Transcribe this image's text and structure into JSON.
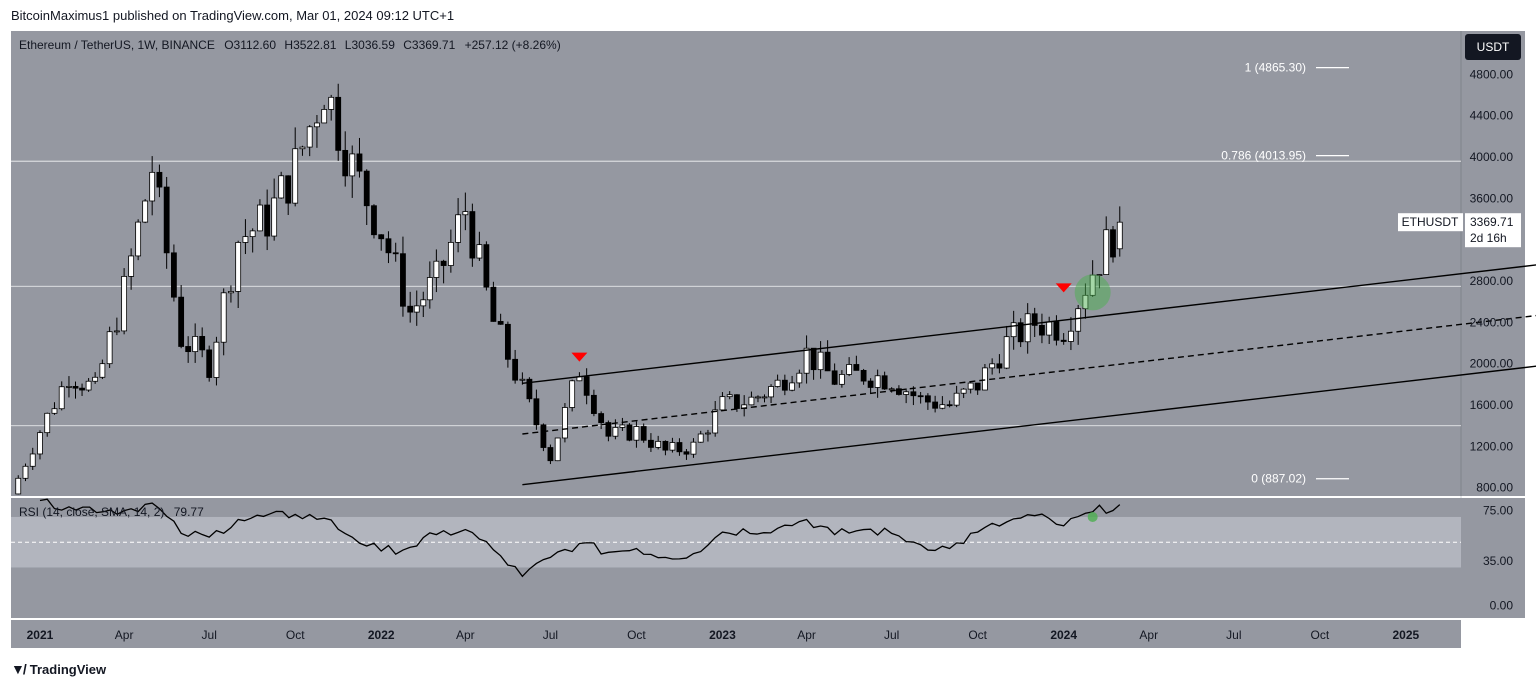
{
  "publisher_line": "BitcoinMaximus1 published on TradingView.com, Mar 01, 2024 09:12 UTC+1",
  "footer_brand": "TradingView",
  "legend": {
    "symbol": "Ethereum / TetherUS, 1W, BINANCE",
    "o_label": "O",
    "o_value": "3112.60",
    "h_label": "H",
    "h_value": "3522.81",
    "l_label": "L",
    "l_value": "3036.59",
    "c_label": "C",
    "c_value": "3369.71",
    "change": "+257.12 (+8.26%)"
  },
  "currency_badge": "USDT",
  "price_tag": {
    "symbol": "ETHUSDT",
    "price": "3369.71",
    "countdown": "2d 16h"
  },
  "fib_levels": [
    {
      "label": "1 (4865.30)",
      "value": 4865.3
    },
    {
      "label": "0.786 (4013.95)",
      "value": 4013.95
    },
    {
      "label": "0 (887.02)",
      "value": 887.02
    }
  ],
  "rsi_legend": {
    "label": "RSI (14, close, SMA, 14, 2)",
    "value": "79.77"
  },
  "colors": {
    "pane_bg": "#9598a1",
    "rsi_band": "#b2b5be",
    "up_candle": "#ffffff",
    "down_candle": "#000000",
    "marker_red": "#ff0000",
    "highlight_green": "#4caf50"
  },
  "chart_data": [
    {
      "type": "candlestick",
      "title": "Ethereum / TetherUS, 1W, BINANCE",
      "x_axis_labels": [
        "2021",
        "Apr",
        "Jul",
        "Oct",
        "2022",
        "Apr",
        "Jul",
        "Oct",
        "2023",
        "Apr",
        "Jul",
        "Oct",
        "2024",
        "Apr",
        "Jul",
        "Oct",
        "2025"
      ],
      "y_axis_labels": [
        "4800.00",
        "4400.00",
        "4000.00",
        "3600.00",
        "3200.00",
        "2800.00",
        "2400.00",
        "2000.00",
        "1600.00",
        "1200.00",
        "800.00"
      ],
      "ylim": [
        720,
        5220
      ],
      "grid": "horizontal lines at 1400, 2750, 3960",
      "current_price": 3369.71,
      "channel": {
        "upper": [
          [
            "2022-06",
            1810
          ],
          [
            "2025-07",
            3000
          ]
        ],
        "middle": [
          [
            "2022-06",
            1320
          ],
          [
            "2025-07",
            2510
          ]
        ],
        "lower": [
          [
            "2022-06",
            830
          ],
          [
            "2025-07",
            2020
          ]
        ]
      },
      "markers": [
        {
          "kind": "bearish-arrow",
          "date": "2022-08",
          "value": 2020
        },
        {
          "kind": "bearish-arrow",
          "date": "2024-01",
          "value": 2690
        },
        {
          "kind": "breakout-circle",
          "date": "2024-02",
          "value": 2690
        }
      ],
      "close_path": [
        [
          "2020-12",
          740
        ],
        [
          "2021-01",
          1350
        ],
        [
          "2021-02",
          1900
        ],
        [
          "2021-03",
          1750
        ],
        [
          "2021-04",
          2700
        ],
        [
          "2021-05",
          3900
        ],
        [
          "2021-06",
          2250
        ],
        [
          "2021-07",
          2000
        ],
        [
          "2021-08",
          3200
        ],
        [
          "2021-09",
          3400
        ],
        [
          "2021-10",
          3900
        ],
        [
          "2021-11",
          4700
        ],
        [
          "2021-12",
          3900
        ],
        [
          "2022-01",
          3300
        ],
        [
          "2022-02",
          2500
        ],
        [
          "2022-03",
          2800
        ],
        [
          "2022-04",
          3500
        ],
        [
          "2022-05",
          2400
        ],
        [
          "2022-06",
          1750
        ],
        [
          "2022-07",
          1100
        ],
        [
          "2022-08",
          1950
        ],
        [
          "2022-09",
          1300
        ],
        [
          "2022-10",
          1350
        ],
        [
          "2022-11",
          1150
        ],
        [
          "2022-12",
          1200
        ],
        [
          "2023-01",
          1600
        ],
        [
          "2023-02",
          1650
        ],
        [
          "2023-03",
          1800
        ],
        [
          "2023-04",
          2100
        ],
        [
          "2023-05",
          1850
        ],
        [
          "2023-06",
          1900
        ],
        [
          "2023-07",
          1850
        ],
        [
          "2023-08",
          1650
        ],
        [
          "2023-09",
          1600
        ],
        [
          "2023-10",
          1800
        ],
        [
          "2023-11",
          2200
        ],
        [
          "2023-12",
          2400
        ],
        [
          "2024-01",
          2350
        ],
        [
          "2024-02",
          2900
        ],
        [
          "2024-03",
          3369.71
        ]
      ]
    },
    {
      "type": "line",
      "title": "RSI (14, close, SMA, 14, 2)",
      "last_value": 79.77,
      "y_axis_labels": [
        "75.00",
        "35.00",
        "0.00"
      ],
      "ylim": [
        -10,
        85
      ],
      "band": [
        30,
        70
      ],
      "midline": 50,
      "values": [
        [
          "2021-01",
          83
        ],
        [
          "2021-02",
          78
        ],
        [
          "2021-04",
          75
        ],
        [
          "2021-05",
          81
        ],
        [
          "2021-06",
          57
        ],
        [
          "2021-07",
          54
        ],
        [
          "2021-08",
          68
        ],
        [
          "2021-10",
          72
        ],
        [
          "2021-11",
          69
        ],
        [
          "2021-12",
          54
        ],
        [
          "2022-01",
          43
        ],
        [
          "2022-02",
          46
        ],
        [
          "2022-03",
          56
        ],
        [
          "2022-04",
          60
        ],
        [
          "2022-05",
          44
        ],
        [
          "2022-06",
          23
        ],
        [
          "2022-07",
          38
        ],
        [
          "2022-08",
          49
        ],
        [
          "2022-09",
          42
        ],
        [
          "2022-10",
          45
        ],
        [
          "2022-11",
          38
        ],
        [
          "2022-12",
          41
        ],
        [
          "2023-01",
          58
        ],
        [
          "2023-03",
          61
        ],
        [
          "2023-04",
          68
        ],
        [
          "2023-05",
          56
        ],
        [
          "2023-06",
          60
        ],
        [
          "2023-07",
          57
        ],
        [
          "2023-08",
          48
        ],
        [
          "2023-09",
          45
        ],
        [
          "2023-10",
          58
        ],
        [
          "2023-11",
          66
        ],
        [
          "2023-12",
          71
        ],
        [
          "2024-01",
          63
        ],
        [
          "2024-02",
          74
        ],
        [
          "2024-03",
          79.77
        ]
      ]
    }
  ]
}
